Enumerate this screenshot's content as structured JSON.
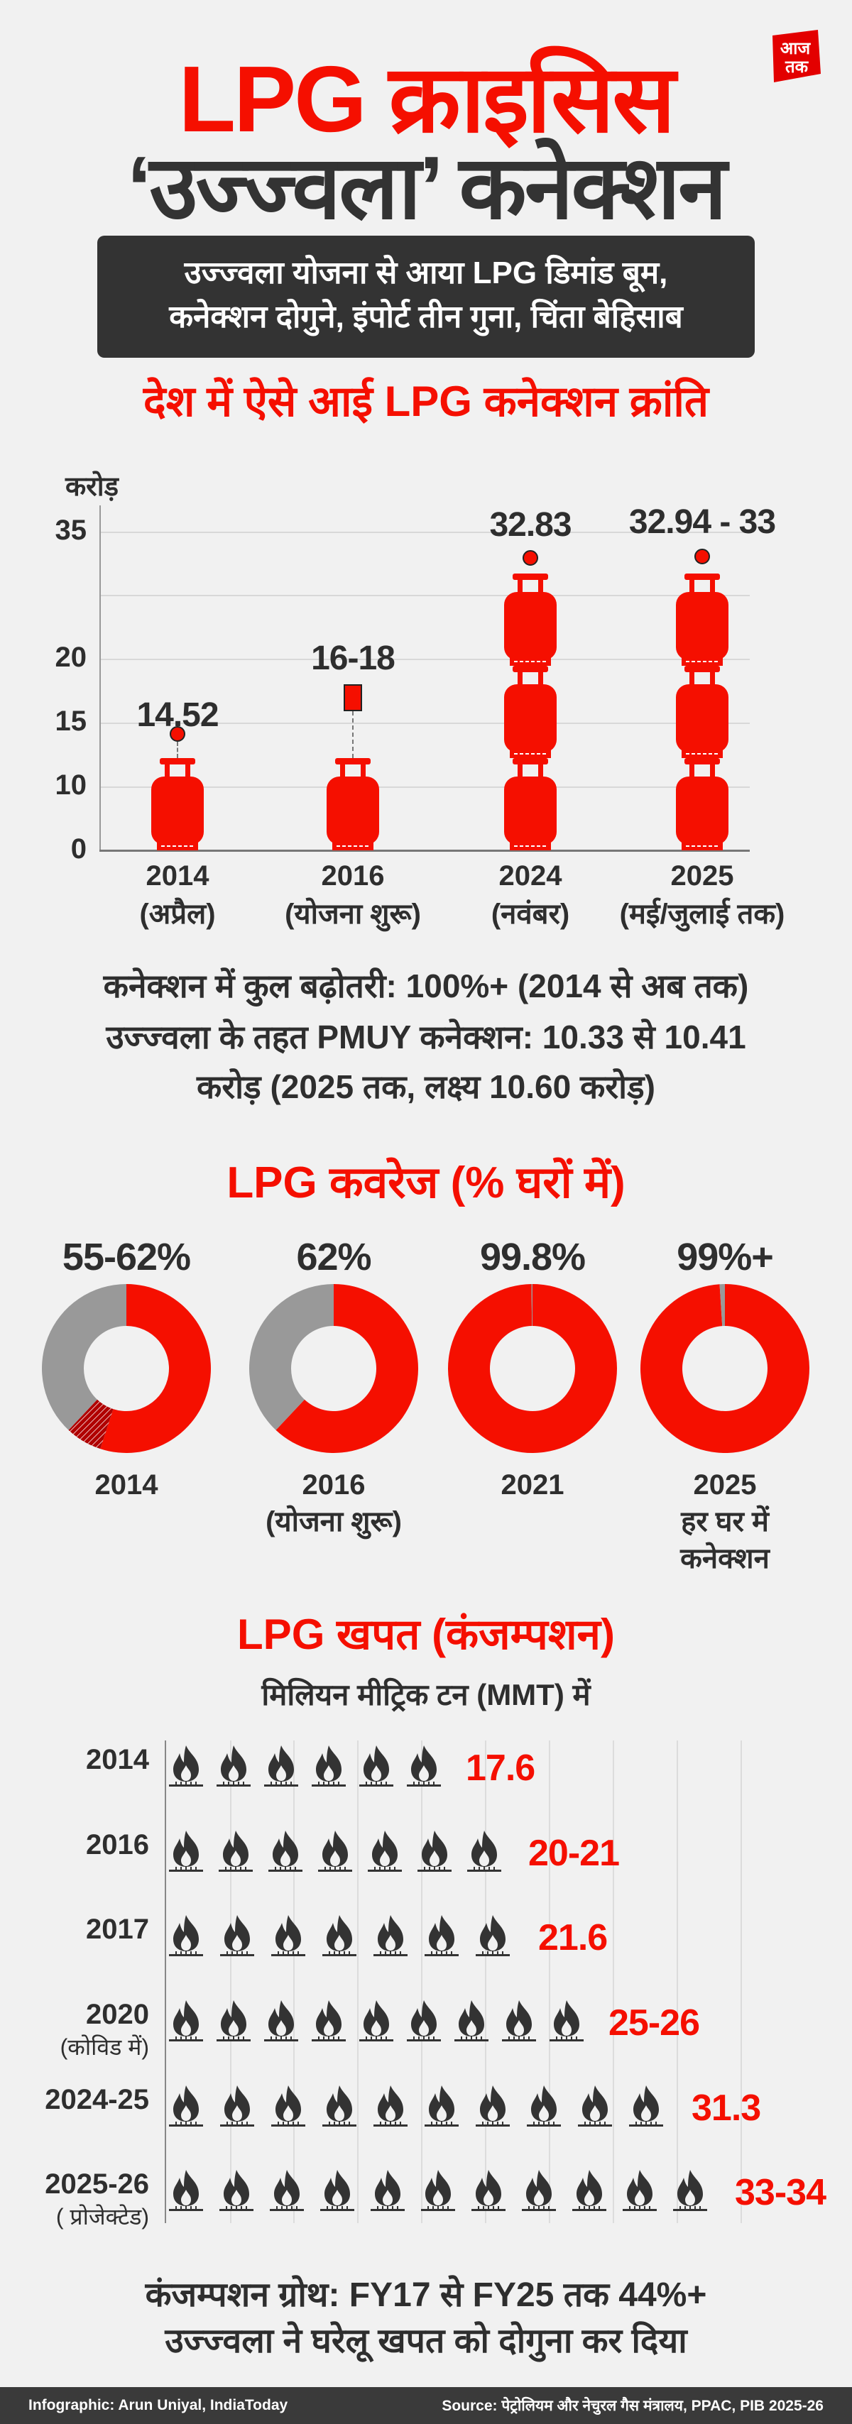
{
  "brand": {
    "logo_text": "आज तक",
    "accent": "#f50f00",
    "dark": "#333333"
  },
  "header": {
    "title_line1": "LPG क्राइसिस",
    "title_line2": "‘उज्ज्वला’ कनेक्शन",
    "subtitle_line1": "उज्ज्वला योजना से आया LPG डिमांड बूम,",
    "subtitle_line2": "कनेक्शन दोगुने, इंपोर्ट तीन गुना, चिंता बेहिसाब"
  },
  "connections_section": {
    "heading": "देश में ऐसे आई LPG कनेक्शन क्रांति",
    "notes": [
      "कनेक्शन में कुल बढ़ोतरी: 100%+ (2014 से अब तक)",
      "उज्ज्वला के तहत PMUY कनेक्शन: 10.33 से 10.41",
      "करोड़ (2025 तक, लक्ष्य 10.60 करोड़)"
    ]
  },
  "coverage_section": {
    "heading": "LPG कवरेज (% घरों में)"
  },
  "consumption_section": {
    "heading": "LPG खपत (कंजम्पशन)",
    "unit": "मिलियन मीट्रिक टन (MMT) में",
    "notes": [
      "कंजम्पशन ग्रोथ: FY17 से FY25 तक 44%+",
      "उज्ज्वला ने घरेलू खपत को दोगुना कर दिया"
    ]
  },
  "footer": {
    "credit": "Infographic: Arun Uniyal, IndiaToday",
    "source": "Source: पेट्रोलियम और नेचुरल गैस मंत्रालय, PPAC, PIB 2025-26"
  },
  "chart_data": [
    {
      "type": "bar",
      "ylabel": "करोड़",
      "y_ticks": [
        "0",
        "10",
        "15",
        "20",
        "",
        "35"
      ],
      "grid": true,
      "categories": [
        "2014",
        "2016",
        "2024",
        "2025"
      ],
      "category_sublabels": [
        "(अप्रैल)",
        "(योजना शुरू)",
        "(नवंबर)",
        "(मई/जुलाई तक)"
      ],
      "value_labels": [
        "14.52",
        "16-18",
        "32.83",
        "32.94 - 33"
      ],
      "values": [
        14.52,
        [
          16,
          18
        ],
        32.83,
        [
          32.94,
          33
        ]
      ],
      "cylinder_icons": [
        1,
        1,
        3,
        3
      ]
    },
    {
      "type": "pie",
      "style": "donut",
      "items": [
        {
          "year": "2014",
          "sublabel": "",
          "label": "55-62%",
          "range": [
            55,
            62
          ]
        },
        {
          "year": "2016",
          "sublabel": "(योजना शुरू)",
          "label": "62%",
          "value": 62
        },
        {
          "year": "2021",
          "sublabel": "",
          "label": "99.8%",
          "value": 99.8
        },
        {
          "year": "2025",
          "sublabel": "हर घर में कनेक्शन",
          "label": "99%+",
          "value": 99
        }
      ],
      "colors": {
        "covered": "#f50f00",
        "uncovered": "#999999"
      }
    },
    {
      "type": "bar",
      "style": "pictogram",
      "rows": [
        {
          "label": "2014",
          "sublabel": "",
          "value": "17.6",
          "icons": 6
        },
        {
          "label": "2016",
          "sublabel": "",
          "value": "20-21",
          "icons": 7
        },
        {
          "label": "2017",
          "sublabel": "",
          "value": "21.6",
          "icons": 7
        },
        {
          "label": "2020",
          "sublabel": "(कोविड में)",
          "value": "25-26",
          "icons": 9
        },
        {
          "label": "2024-25",
          "sublabel": "",
          "value": "31.3",
          "icons": 10
        },
        {
          "label": "2025-26",
          "sublabel": "( प्रोजेक्टेड)",
          "value": "33-34",
          "icons": 11
        }
      ]
    }
  ]
}
